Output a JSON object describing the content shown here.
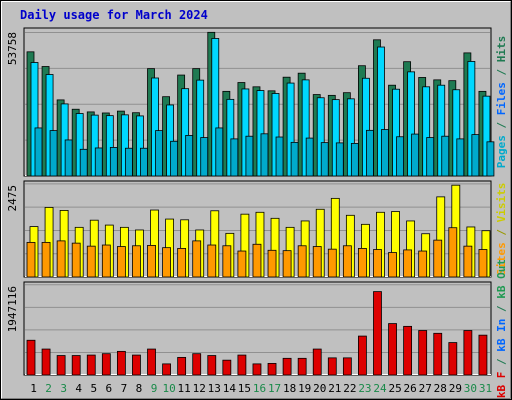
{
  "chart_title": "Daily usage for March 2024",
  "colors": {
    "hits": "#1f7a52",
    "files": "#00d8ff",
    "pages": "#00aacc",
    "visits": "#ffff00",
    "sites": "#ff9900",
    "kb": "#dd0000",
    "weekday": "#000000",
    "weekend": "#1a8a4a",
    "plot_bg": "#c0c0c0",
    "frame_bg": "#c0c0c0"
  },
  "right_labels": {
    "top": [
      {
        "text": "Pages",
        "color": "#00aacc"
      },
      {
        "text": " / ",
        "color": "#1f7a52"
      },
      {
        "text": "Files",
        "color": "#0066ff"
      },
      {
        "text": " / ",
        "color": "#1f7a52"
      },
      {
        "text": "Hits",
        "color": "#1f7a52"
      }
    ],
    "middle": [
      {
        "text": "Sites",
        "color": "#ff9900"
      },
      {
        "text": " / ",
        "color": "#999900"
      },
      {
        "text": "Visits",
        "color": "#cccc00"
      }
    ],
    "bottom": [
      {
        "text": "kB F",
        "color": "#dd0000"
      },
      {
        "text": " / ",
        "color": "#1f7a52"
      },
      {
        "text": "kB In",
        "color": "#0066ff"
      },
      {
        "text": " / ",
        "color": "#1f7a52"
      },
      {
        "text": "kB Out",
        "color": "#1f9a52"
      }
    ]
  },
  "chart_data": [
    {
      "type": "bar",
      "panel": "hits-files-pages",
      "ymax_label": "53758",
      "ylim": [
        0,
        53758
      ],
      "categories": [
        "1",
        "2",
        "3",
        "4",
        "5",
        "6",
        "7",
        "8",
        "9",
        "10",
        "11",
        "12",
        "13",
        "14",
        "15",
        "16",
        "17",
        "18",
        "19",
        "20",
        "21",
        "22",
        "23",
        "24",
        "25",
        "26",
        "27",
        "28",
        "29",
        "30",
        "31"
      ],
      "series": [
        {
          "name": "Hits",
          "values": [
            46500,
            41000,
            28500,
            25000,
            24000,
            23600,
            24300,
            23700,
            40200,
            29700,
            37800,
            40200,
            53800,
            31700,
            35000,
            33400,
            31900,
            37000,
            38500,
            30500,
            30200,
            31200,
            41300,
            51000,
            34000,
            42800,
            36900,
            36000,
            35700,
            46100,
            31700
          ]
        },
        {
          "name": "Files",
          "values": [
            42500,
            38000,
            27000,
            23400,
            22800,
            22600,
            22900,
            22500,
            36700,
            26600,
            32700,
            35900,
            51500,
            28700,
            32600,
            32000,
            30900,
            34800,
            36000,
            29300,
            28600,
            28900,
            36600,
            48300,
            32500,
            39000,
            33400,
            34000,
            32300,
            42900,
            29900
          ]
        },
        {
          "name": "Pages",
          "values": [
            18000,
            17000,
            13500,
            10000,
            10500,
            10700,
            10400,
            10400,
            17000,
            13000,
            15200,
            14400,
            18000,
            13900,
            14900,
            15800,
            14600,
            12600,
            14200,
            12500,
            12400,
            12200,
            17100,
            17400,
            14700,
            15700,
            14400,
            14900,
            13900,
            15500,
            12800
          ]
        }
      ]
    },
    {
      "type": "bar",
      "panel": "visits-sites",
      "ymax_label": "2475",
      "ylim": [
        0,
        2475
      ],
      "categories": [
        "1",
        "2",
        "3",
        "4",
        "5",
        "6",
        "7",
        "8",
        "9",
        "10",
        "11",
        "12",
        "13",
        "14",
        "15",
        "16",
        "17",
        "18",
        "19",
        "20",
        "21",
        "22",
        "23",
        "24",
        "25",
        "26",
        "27",
        "28",
        "29",
        "30",
        "31"
      ],
      "series": [
        {
          "name": "Visits",
          "values": [
            1340,
            1850,
            1770,
            1320,
            1510,
            1380,
            1320,
            1250,
            1780,
            1540,
            1520,
            1250,
            1760,
            1160,
            1670,
            1720,
            1560,
            1320,
            1490,
            1800,
            2090,
            1640,
            1400,
            1720,
            1740,
            1490,
            1150,
            2130,
            2440,
            1330,
            1230
          ]
        },
        {
          "name": "Sites",
          "values": [
            920,
            920,
            960,
            900,
            820,
            850,
            810,
            830,
            840,
            780,
            760,
            960,
            850,
            830,
            690,
            870,
            710,
            700,
            830,
            810,
            740,
            830,
            760,
            730,
            650,
            720,
            690,
            980,
            1310,
            820,
            730
          ]
        }
      ]
    },
    {
      "type": "bar",
      "panel": "kb",
      "ymax_label": "1947116",
      "ylim": [
        0,
        1947116
      ],
      "categories": [
        "1",
        "2",
        "3",
        "4",
        "5",
        "6",
        "7",
        "8",
        "9",
        "10",
        "11",
        "12",
        "13",
        "14",
        "15",
        "16",
        "17",
        "18",
        "19",
        "20",
        "21",
        "22",
        "23",
        "24",
        "25",
        "26",
        "27",
        "28",
        "29",
        "30",
        "31"
      ],
      "series": [
        {
          "name": "kB F",
          "values": [
            750000,
            560000,
            420000,
            420000,
            430000,
            460000,
            510000,
            430000,
            560000,
            240000,
            380000,
            460000,
            420000,
            320000,
            430000,
            240000,
            250000,
            360000,
            360000,
            560000,
            370000,
            370000,
            840000,
            1800000,
            1110000,
            1050000,
            960000,
            900000,
            700000,
            960000,
            860000
          ]
        }
      ]
    }
  ]
}
